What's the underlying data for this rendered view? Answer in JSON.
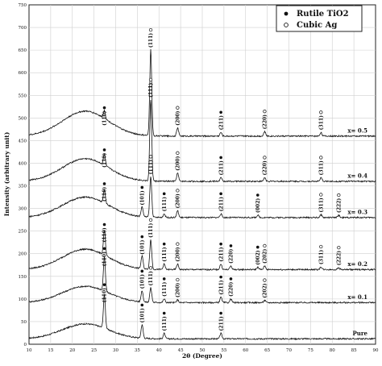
{
  "chart_data": {
    "type": "line",
    "title": "",
    "xlabel": "2θ (Degree)",
    "ylabel": "Intensity (arbitrary unit)",
    "xlim": [
      10,
      90
    ],
    "ylim": [
      0,
      750
    ],
    "x_ticks": [
      "10",
      "15",
      "20",
      "25",
      "30",
      "35",
      "40",
      "45",
      "50",
      "55",
      "60",
      "65",
      "70",
      "75",
      "80",
      "85",
      "90"
    ],
    "y_ticks": [
      "0",
      "50",
      "100",
      "150",
      "200",
      "250",
      "300",
      "350",
      "400",
      "450",
      "500",
      "550",
      "600",
      "650",
      "700",
      "750"
    ],
    "grid": true,
    "legend_position": "top-right",
    "legend": [
      {
        "marker": "filled-circle",
        "label": "Rutile TiO2"
      },
      {
        "marker": "open-circle",
        "label": "Cubic Ag"
      }
    ],
    "series": [
      {
        "name": "Pure",
        "baseline": 12,
        "hump": 33,
        "peaks": [
          {
            "x": 27.4,
            "h": 75,
            "label": "(110)",
            "marker": "filled"
          },
          {
            "x": 36.1,
            "h": 30,
            "label": "(101)",
            "marker": "filled"
          },
          {
            "x": 41.2,
            "h": 12,
            "label": "(111)",
            "marker": "filled"
          },
          {
            "x": 54.3,
            "h": 12,
            "label": "(211)",
            "marker": "filled"
          }
        ]
      },
      {
        "name": "x= 0.1",
        "baseline": 92,
        "hump": 36,
        "peaks": [
          {
            "x": 27.4,
            "h": 75,
            "label": "(110)",
            "marker": "filled"
          },
          {
            "x": 36.1,
            "h": 25,
            "label": "(101)",
            "marker": "filled"
          },
          {
            "x": 38.1,
            "h": 32,
            "label": "(111)",
            "marker": "open"
          },
          {
            "x": 41.2,
            "h": 8,
            "label": "(111)",
            "marker": "filled"
          },
          {
            "x": 44.3,
            "h": 6,
            "label": "(200)",
            "marker": "open"
          },
          {
            "x": 54.3,
            "h": 12,
            "label": "(211)",
            "marker": "filled"
          },
          {
            "x": 56.6,
            "h": 8,
            "label": "(220)",
            "marker": "filled"
          },
          {
            "x": 64.4,
            "h": 5,
            "label": "(202)",
            "marker": "open"
          }
        ]
      },
      {
        "name": "x= 0.2",
        "baseline": 165,
        "hump": 45,
        "peaks": [
          {
            "x": 27.4,
            "h": 55,
            "label": "(110)",
            "marker": "filled"
          },
          {
            "x": 36.1,
            "h": 28,
            "label": "(101)",
            "marker": "filled"
          },
          {
            "x": 38.1,
            "h": 65,
            "label": "(111)",
            "marker": "open"
          },
          {
            "x": 41.2,
            "h": 12,
            "label": "(111)",
            "marker": "filled"
          },
          {
            "x": 44.3,
            "h": 12,
            "label": "(200)",
            "marker": "open"
          },
          {
            "x": 54.3,
            "h": 12,
            "label": "(211)",
            "marker": "filled"
          },
          {
            "x": 56.6,
            "h": 8,
            "label": "(220)",
            "marker": "filled"
          },
          {
            "x": 62.8,
            "h": 5,
            "label": "(002)",
            "marker": "filled"
          },
          {
            "x": 64.4,
            "h": 8,
            "label": "(202)",
            "marker": "open"
          },
          {
            "x": 77.4,
            "h": 6,
            "label": "(311)",
            "marker": "open"
          },
          {
            "x": 81.5,
            "h": 4,
            "label": "(222)",
            "marker": "open"
          }
        ]
      },
      {
        "name": "x= 0.3",
        "baseline": 280,
        "hump": 45,
        "peaks": [
          {
            "x": 27.4,
            "h": 30,
            "label": "(110)",
            "marker": "filled"
          },
          {
            "x": 36.1,
            "h": 22,
            "label": "(101)",
            "marker": "filled"
          },
          {
            "x": 38.1,
            "h": 90,
            "label": "(111)",
            "marker": "open"
          },
          {
            "x": 41.2,
            "h": 8,
            "label": "(111)",
            "marker": "filled"
          },
          {
            "x": 44.3,
            "h": 15,
            "label": "(200)",
            "marker": "open"
          },
          {
            "x": 54.3,
            "h": 8,
            "label": "(211)",
            "marker": "filled"
          },
          {
            "x": 62.8,
            "h": 5,
            "label": "(002)",
            "marker": "filled"
          },
          {
            "x": 77.4,
            "h": 6,
            "label": "(311)",
            "marker": "open"
          },
          {
            "x": 81.5,
            "h": 5,
            "label": "(222)",
            "marker": "open"
          }
        ]
      },
      {
        "name": "x= 0.4",
        "baseline": 360,
        "hump": 50,
        "peaks": [
          {
            "x": 27.4,
            "h": 25,
            "label": "(110)",
            "marker": "filled"
          },
          {
            "x": 38.1,
            "h": 180,
            "label": "(111)",
            "marker": "open"
          },
          {
            "x": 44.3,
            "h": 18,
            "label": "(200)",
            "marker": "open"
          },
          {
            "x": 54.3,
            "h": 8,
            "label": "(211)",
            "marker": "filled"
          },
          {
            "x": 64.4,
            "h": 8,
            "label": "(220)",
            "marker": "open"
          },
          {
            "x": 77.4,
            "h": 8,
            "label": "(311)",
            "marker": "open"
          }
        ]
      },
      {
        "name": "x= 0.5",
        "baseline": 460,
        "hump": 55,
        "peaks": [
          {
            "x": 27.4,
            "h": 18,
            "label": "(110)",
            "marker": "filled"
          },
          {
            "x": 38.1,
            "h": 190,
            "label": "(111)",
            "marker": "open"
          },
          {
            "x": 44.3,
            "h": 18,
            "label": "(200)",
            "marker": "open"
          },
          {
            "x": 54.3,
            "h": 8,
            "label": "(211)",
            "marker": "filled"
          },
          {
            "x": 64.4,
            "h": 10,
            "label": "(220)",
            "marker": "open"
          },
          {
            "x": 77.4,
            "h": 8,
            "label": "(311)",
            "marker": "open"
          }
        ]
      }
    ]
  }
}
